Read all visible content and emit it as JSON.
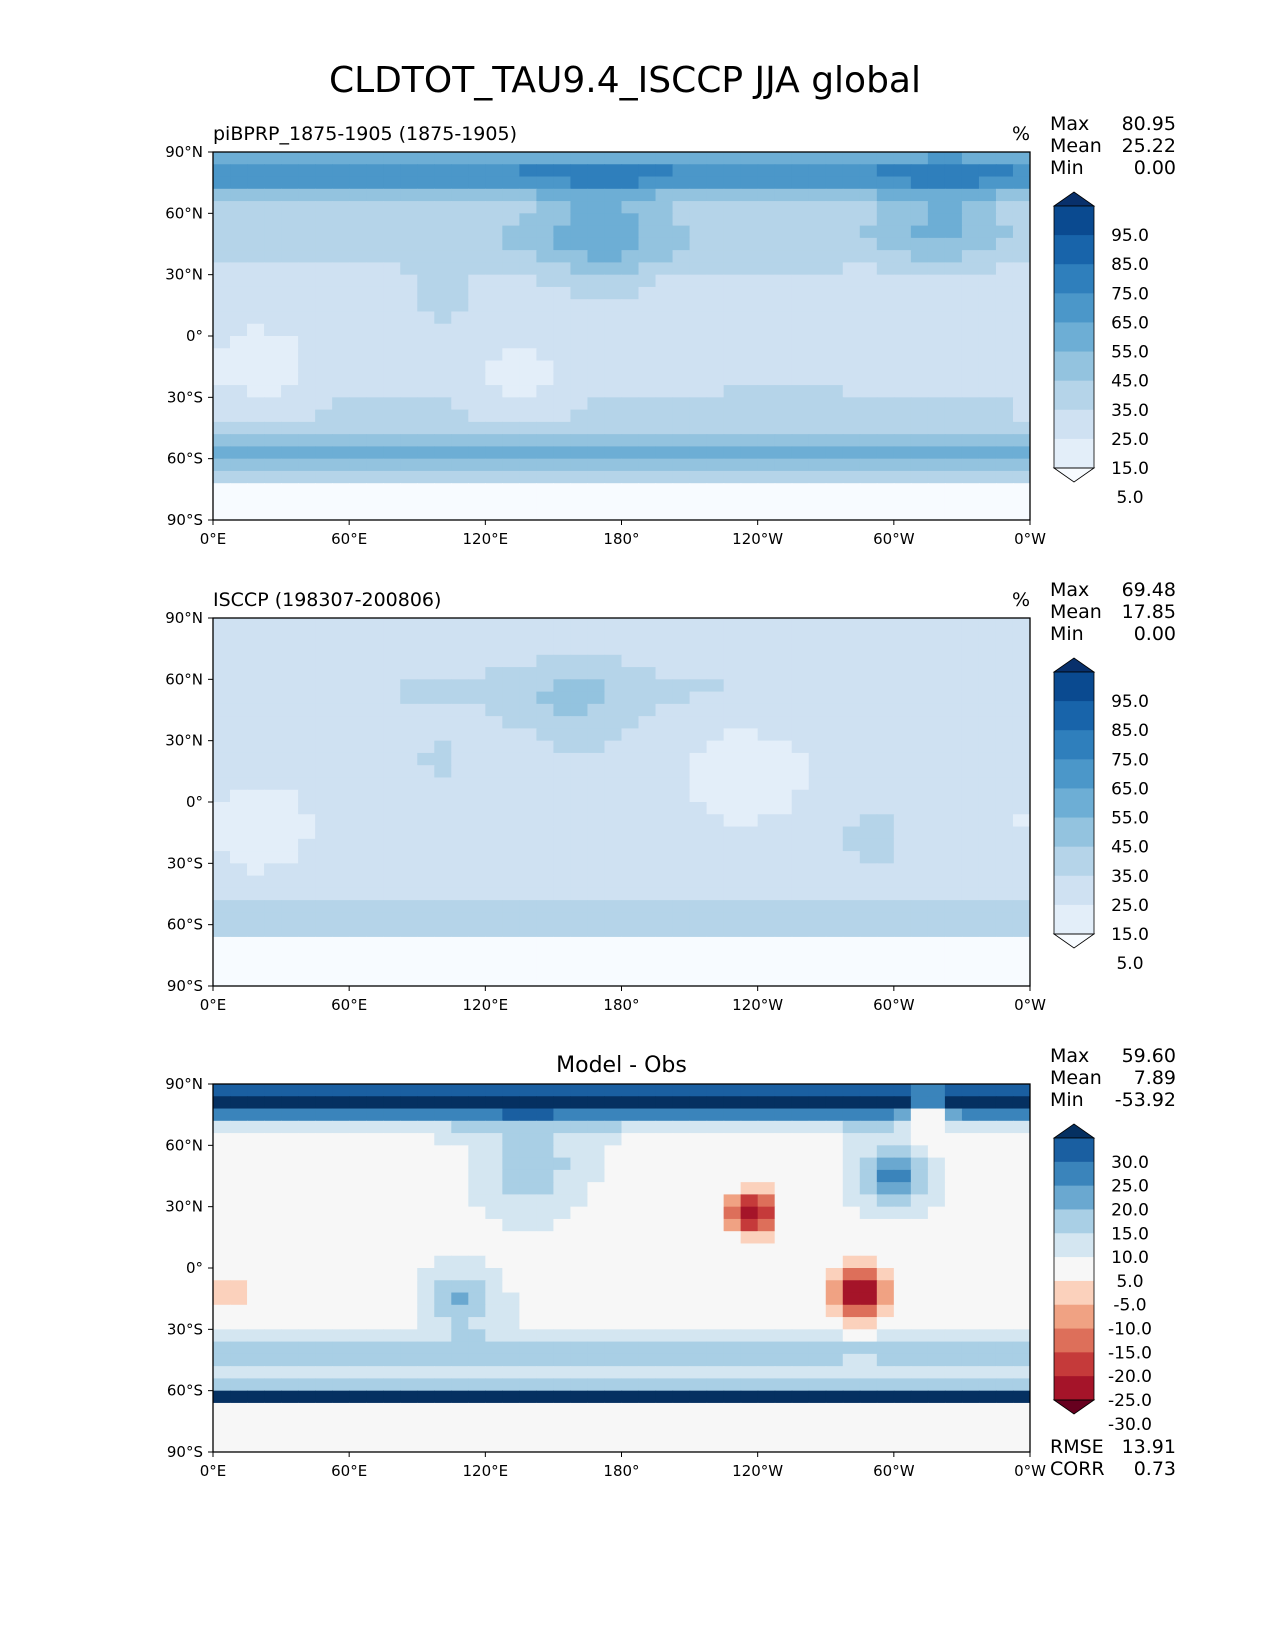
{
  "figure": {
    "title": "CLDTOT_TAU9.4_ISCCP JJA global"
  },
  "chart_data": [
    {
      "type": "heatmap",
      "panel": "test",
      "title_left": "piBPRP_1875-1905 (1875-1905)",
      "title_center": "",
      "units": "%",
      "x_ticks": [
        "0°E",
        "60°E",
        "120°E",
        "180°",
        "120°W",
        "60°W",
        "0°W"
      ],
      "y_ticks": [
        "90°N",
        "60°N",
        "30°N",
        "0°",
        "30°S",
        "60°S",
        "90°S"
      ],
      "xlim": [
        0,
        360
      ],
      "ylim": [
        -90,
        90
      ],
      "stats": [
        {
          "label": "Max",
          "value": "80.95"
        },
        {
          "label": "Mean",
          "value": "25.22"
        },
        {
          "label": "Min",
          "value": "0.00"
        }
      ],
      "colorbar": {
        "colors": [
          "#f7fbff",
          "#e3eef9",
          "#cfe1f2",
          "#b5d4e9",
          "#93c3df",
          "#6daed5",
          "#4b97c9",
          "#2f7fbc",
          "#1864aa",
          "#0a4a90",
          "#08306b"
        ],
        "labels": [
          "95.0",
          "85.0",
          "75.0",
          "65.0",
          "55.0",
          "45.0",
          "35.0",
          "25.0",
          "15.0",
          "5.0"
        ]
      },
      "field": {
        "base": 18,
        "bands": [
          {
            "lat": 80,
            "width": 12,
            "amp": 45
          },
          {
            "lat": -58,
            "width": 10,
            "amp": 30
          },
          {
            "lat": 48,
            "width": 14,
            "amp": 14
          },
          {
            "lat": -35,
            "width": 14,
            "amp": 8
          }
        ],
        "blobs": [
          {
            "lon": 170,
            "lat": 50,
            "r": 30,
            "amp": 22
          },
          {
            "lon": 320,
            "lat": 60,
            "r": 25,
            "amp": 18
          },
          {
            "lon": 100,
            "lat": 20,
            "r": 20,
            "amp": 10
          },
          {
            "lon": 250,
            "lat": 10,
            "r": 35,
            "amp": 6
          },
          {
            "lon": 20,
            "lat": -20,
            "r": 20,
            "amp": -12
          },
          {
            "lon": 135,
            "lat": -25,
            "r": 18,
            "amp": -10
          }
        ],
        "antarctic_cap": -70,
        "cap_value": 3
      }
    },
    {
      "type": "heatmap",
      "panel": "reference",
      "title_left": "ISCCP (198307-200806)",
      "title_center": "",
      "units": "%",
      "x_ticks": [
        "0°E",
        "60°E",
        "120°E",
        "180°",
        "120°W",
        "60°W",
        "0°W"
      ],
      "y_ticks": [
        "90°N",
        "60°N",
        "30°N",
        "0°",
        "30°S",
        "60°S",
        "90°S"
      ],
      "xlim": [
        0,
        360
      ],
      "ylim": [
        -90,
        90
      ],
      "stats": [
        {
          "label": "Max",
          "value": "69.48"
        },
        {
          "label": "Mean",
          "value": "17.85"
        },
        {
          "label": "Min",
          "value": "0.00"
        }
      ],
      "colorbar": {
        "colors": [
          "#f7fbff",
          "#e3eef9",
          "#cfe1f2",
          "#b5d4e9",
          "#93c3df",
          "#6daed5",
          "#4b97c9",
          "#2f7fbc",
          "#1864aa",
          "#0a4a90",
          "#08306b"
        ],
        "labels": [
          "95.0",
          "85.0",
          "75.0",
          "65.0",
          "55.0",
          "45.0",
          "35.0",
          "25.0",
          "15.0",
          "5.0"
        ]
      },
      "field": {
        "base": 16,
        "bands": [
          {
            "lat": -57,
            "width": 8,
            "amp": 18
          },
          {
            "lat": 55,
            "width": 16,
            "amp": 9
          },
          {
            "lat": -35,
            "width": 14,
            "amp": 5
          }
        ],
        "blobs": [
          {
            "lon": 160,
            "lat": 45,
            "r": 30,
            "amp": 14
          },
          {
            "lon": 290,
            "lat": -15,
            "r": 15,
            "amp": 14
          },
          {
            "lon": 100,
            "lat": 20,
            "r": 20,
            "amp": 10
          },
          {
            "lon": 20,
            "lat": -20,
            "r": 18,
            "amp": -10
          },
          {
            "lon": 235,
            "lat": 15,
            "r": 18,
            "amp": -8
          }
        ],
        "antarctic_cap": -68,
        "cap_value": 0
      }
    },
    {
      "type": "heatmap",
      "panel": "difference",
      "title_left": "",
      "title_center": "Model - Obs",
      "units": "",
      "x_ticks": [
        "0°E",
        "60°E",
        "120°E",
        "180°",
        "120°W",
        "60°W",
        "0°W"
      ],
      "y_ticks": [
        "90°N",
        "60°N",
        "30°N",
        "0°",
        "30°S",
        "60°S",
        "90°S"
      ],
      "xlim": [
        0,
        360
      ],
      "ylim": [
        -90,
        90
      ],
      "stats": [
        {
          "label": "Max",
          "value": "59.60"
        },
        {
          "label": "Mean",
          "value": "7.89"
        },
        {
          "label": "Min",
          "value": "-53.92"
        }
      ],
      "metrics": [
        {
          "label": "RMSE",
          "value": "13.91"
        },
        {
          "label": "CORR",
          "value": "0.73"
        }
      ],
      "colorbar": {
        "colors": [
          "#67001f",
          "#a51429",
          "#c53a3a",
          "#dd6f5a",
          "#f0a283",
          "#fbd1bc",
          "#f7f7f7",
          "#d4e6f1",
          "#a9cfe5",
          "#6aa8d0",
          "#3a84bb",
          "#1a5fa1",
          "#053061"
        ],
        "labels": [
          "30.0",
          "25.0",
          "20.0",
          "15.0",
          "10.0",
          "5.0",
          "-5.0",
          "-10.0",
          "-15.0",
          "-20.0",
          "-25.0",
          "-30.0"
        ]
      },
      "field": {
        "base": 4,
        "bands": [
          {
            "lat": 82,
            "width": 10,
            "amp": 32
          },
          {
            "lat": -62,
            "width": 4,
            "amp": 30
          },
          {
            "lat": -40,
            "width": 8,
            "amp": 9
          }
        ],
        "blobs": [
          {
            "lon": 237,
            "lat": 27,
            "r": 12,
            "amp": -34
          },
          {
            "lon": 285,
            "lat": -12,
            "r": 14,
            "amp": -34
          },
          {
            "lon": 7,
            "lat": -12,
            "r": 6,
            "amp": -22
          },
          {
            "lon": 315,
            "lat": 75,
            "r": 10,
            "amp": -24
          },
          {
            "lon": 300,
            "lat": 45,
            "r": 14,
            "amp": 20
          },
          {
            "lon": 80,
            "lat": 30,
            "r": 15,
            "amp": -6
          },
          {
            "lon": 140,
            "lat": 50,
            "r": 20,
            "amp": 10
          },
          {
            "lon": 110,
            "lat": -15,
            "r": 14,
            "amp": 12
          }
        ],
        "antarctic_cap": -68,
        "cap_value": 0
      }
    }
  ]
}
